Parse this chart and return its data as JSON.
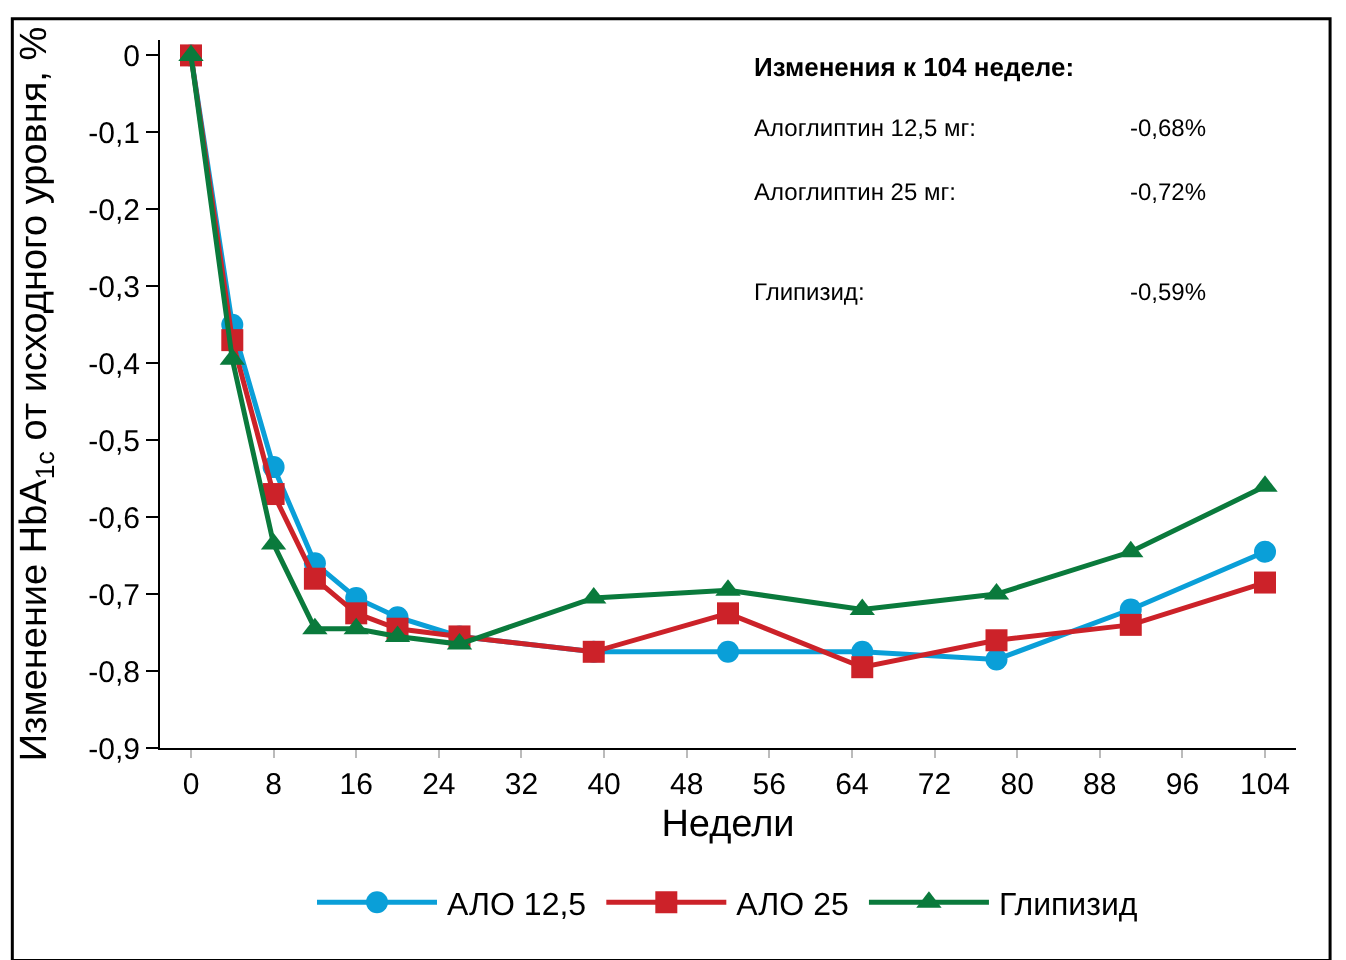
{
  "chart_data": {
    "type": "line",
    "xlabel": "Недели",
    "ylabel": "Изменение HbA$_{1c}$ от исходного уровня, %",
    "x": [
      0,
      4,
      8,
      12,
      16,
      20,
      26,
      39,
      52,
      65,
      78,
      91,
      104
    ],
    "series": [
      {
        "name": "АЛО 12,5",
        "color": "#0a9fd8",
        "marker": "circle",
        "values": [
          0,
          -0.35,
          -0.535,
          -0.66,
          -0.705,
          -0.73,
          -0.755,
          -0.775,
          -0.775,
          -0.775,
          -0.785,
          -0.72,
          -0.645
        ]
      },
      {
        "name": "АЛО 25",
        "color": "#cc2229",
        "marker": "square",
        "values": [
          0,
          -0.37,
          -0.57,
          -0.68,
          -0.725,
          -0.745,
          -0.755,
          -0.775,
          -0.725,
          -0.795,
          -0.76,
          -0.74,
          -0.685
        ]
      },
      {
        "name": "Глипизид",
        "color": "#0a7a3c",
        "marker": "triangle",
        "values": [
          0,
          -0.395,
          -0.635,
          -0.745,
          -0.745,
          -0.755,
          -0.765,
          -0.705,
          -0.695,
          -0.72,
          -0.7,
          -0.645,
          -0.56
        ]
      }
    ],
    "xlim": [
      -3,
      107
    ],
    "xticks": [
      0,
      8,
      16,
      24,
      32,
      40,
      48,
      56,
      64,
      72,
      80,
      88,
      96,
      104
    ],
    "ylim": [
      -0.9,
      0.02
    ],
    "yticks": [
      0,
      {
        "value": -0.1,
        "label": "-0,1"
      },
      {
        "value": -0.2,
        "label": "-0,2"
      },
      {
        "value": -0.3,
        "label": "-0,3"
      },
      {
        "value": -0.4,
        "label": "-0,4"
      },
      {
        "value": -0.5,
        "label": "-0,5"
      },
      {
        "value": -0.6,
        "label": "-0,6"
      },
      {
        "value": -0.7,
        "label": "-0,7"
      },
      {
        "value": -0.8,
        "label": "-0,8"
      },
      {
        "value": -0.9,
        "label": "-0,9"
      }
    ],
    "annotations": [
      "Изменения к 104 неделе:",
      "Алоглиптин 12,5 мг:",
      "-0,68%",
      "Алоглиптин 25 мг:",
      "-0,72%",
      "Глипизид:",
      "-0,59%"
    ],
    "legend": "bottom",
    "line_style": "solid"
  }
}
